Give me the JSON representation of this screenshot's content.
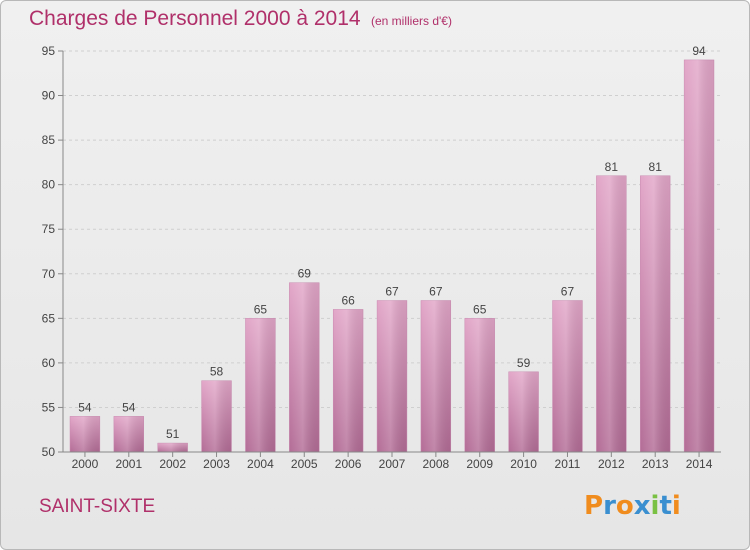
{
  "header": {
    "title": "Charges de Personnel 2000 à 2014",
    "subtitle": "(en milliers d'€)"
  },
  "footer": {
    "commune": "SAINT-SIXTE",
    "logo_text": "Proxiti"
  },
  "colors": {
    "title": "#b0306a",
    "bar_top": "#e2a6c8",
    "bar_bottom": "#b36c96",
    "logo_letters": [
      "#f08c1e",
      "#3a8fd0",
      "#f08c1e",
      "#3a8fd0",
      "#7ac143",
      "#3a8fd0",
      "#f08c1e"
    ]
  },
  "chart_data": {
    "type": "bar",
    "categories": [
      "2000",
      "2001",
      "2002",
      "2003",
      "2004",
      "2005",
      "2006",
      "2007",
      "2008",
      "2009",
      "2010",
      "2011",
      "2012",
      "2013",
      "2014"
    ],
    "values": [
      54,
      54,
      51,
      58,
      65,
      69,
      66,
      67,
      67,
      65,
      59,
      67,
      81,
      81,
      94
    ],
    "data_labels": [
      "54",
      "54",
      "51",
      "58",
      "65",
      "69",
      "66",
      "67",
      "67",
      "65",
      "59",
      "67",
      "81",
      "81",
      "94"
    ],
    "title": "Charges de Personnel 2000 à 2014",
    "subtitle": "(en milliers d'€)",
    "xlabel": "",
    "ylabel": "",
    "ylim": [
      50,
      95
    ],
    "yticks": [
      "50",
      "55",
      "60",
      "65",
      "70",
      "75",
      "80",
      "85",
      "90",
      "95"
    ],
    "grid": true,
    "legend": "none"
  }
}
